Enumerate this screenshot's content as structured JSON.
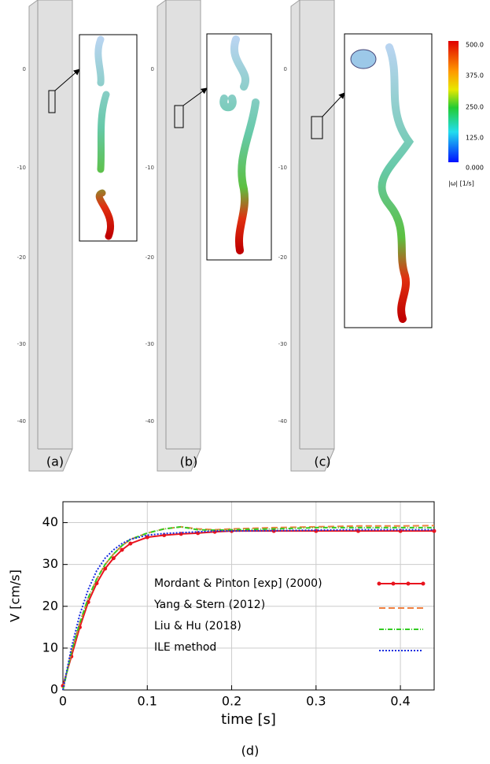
{
  "figure": {
    "panel_labels": [
      "(a)",
      "(b)",
      "(c)"
    ],
    "depth_labels": [
      "0",
      "-10",
      "-20",
      "-30",
      "-40"
    ],
    "colorbar": {
      "ticks": [
        "500.0",
        "375.0",
        "250.0",
        "125.0",
        "0.000"
      ],
      "label": "|ω| [1/s]"
    }
  },
  "chart_data": {
    "type": "line",
    "panel_label": "(d)",
    "x_label": "time [s]",
    "y_label": "V [cm/s]",
    "xlim": [
      0,
      0.44
    ],
    "ylim": [
      0,
      45
    ],
    "xticks": [
      0,
      0.1,
      0.2,
      0.3,
      0.4
    ],
    "yticks": [
      0,
      10,
      20,
      30,
      40
    ],
    "grid": true,
    "legend": "center right",
    "x": [
      0,
      0.01,
      0.02,
      0.03,
      0.04,
      0.05,
      0.06,
      0.07,
      0.08,
      0.1,
      0.12,
      0.14,
      0.16,
      0.18,
      0.2,
      0.25,
      0.3,
      0.35,
      0.4,
      0.44
    ],
    "series": [
      {
        "name": "Mordant & Pinton [exp] (2000)",
        "color": "#e8141e",
        "style": "solid-markers",
        "values": [
          1,
          8,
          15,
          21,
          25.5,
          29,
          31.5,
          33.5,
          35,
          36.5,
          37,
          37.3,
          37.5,
          37.8,
          38,
          38,
          38,
          38,
          38,
          38
        ]
      },
      {
        "name": "Yang & Stern (2012)",
        "color": "#f08040",
        "style": "dashed",
        "values": [
          0,
          9,
          16,
          22,
          26.5,
          30,
          32.5,
          34.5,
          36,
          37.5,
          38.5,
          39,
          38.5,
          38.3,
          38.5,
          38.8,
          39,
          39.2,
          39.2,
          39.3
        ]
      },
      {
        "name": "Liu & Hu (2018)",
        "color": "#33cc22",
        "style": "dashdot",
        "values": [
          0,
          9,
          16,
          22,
          26.5,
          30,
          32.5,
          34.5,
          36,
          37.5,
          38.5,
          39,
          38.3,
          38.2,
          38.3,
          38.5,
          38.8,
          38.8,
          38.8,
          38.8
        ]
      },
      {
        "name": "ILE method",
        "color": "#1a2ee0",
        "style": "dotted",
        "values": [
          0,
          10,
          18,
          24,
          28.5,
          31.5,
          33.5,
          35,
          36,
          37,
          37.4,
          37.6,
          37.8,
          38,
          38,
          38.1,
          38.2,
          38.3,
          38.3,
          38.3
        ]
      }
    ]
  }
}
